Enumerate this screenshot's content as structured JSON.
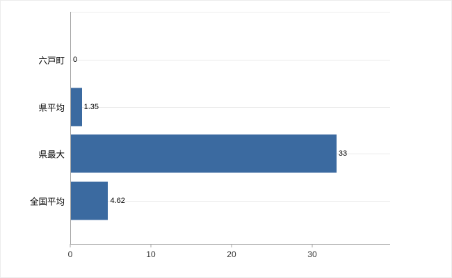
{
  "chart_data": {
    "type": "bar",
    "orientation": "horizontal",
    "title": "",
    "xlabel": "",
    "ylabel": "",
    "categories": [
      "六戸町",
      "県平均",
      "県最大",
      "全国平均"
    ],
    "values": [
      0,
      1.35,
      33,
      4.62
    ],
    "value_labels": [
      "0",
      "1.35",
      "33",
      "4.62"
    ],
    "x_ticks": [
      0,
      10,
      20,
      30
    ],
    "xlim": [
      0,
      39.66
    ],
    "bar_color": "#3b6aa0",
    "guide_line_color": "#e9e9e9",
    "axis_color": "#a6a6a6",
    "legend": "none",
    "grid": "horizontal row guide lines only"
  }
}
